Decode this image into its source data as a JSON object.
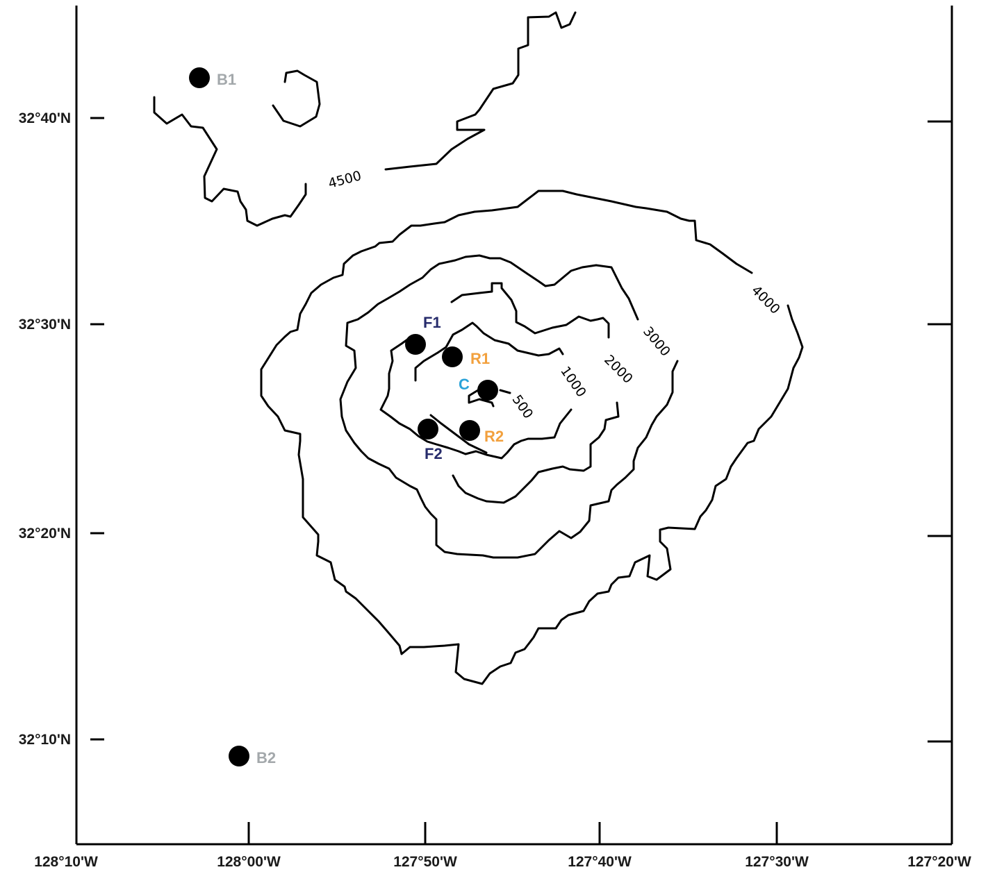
{
  "axes": {
    "x_ticks": [
      "128°10'W",
      "128°00'W",
      "127°50'W",
      "127°40'W",
      "127°30'W",
      "127°20'W"
    ],
    "y_ticks": [
      "32°40'N",
      "32°30'N",
      "32°20'N",
      "32°10'N"
    ]
  },
  "contour_labels": [
    "4500",
    "4000",
    "3000",
    "2000",
    "1000",
    "500"
  ],
  "sites": [
    {
      "id": "B1",
      "color": "#a3a8ab"
    },
    {
      "id": "B2",
      "color": "#a3a8ab"
    },
    {
      "id": "F1",
      "color": "#262b6b"
    },
    {
      "id": "F2",
      "color": "#262b6b"
    },
    {
      "id": "R1",
      "color": "#f2a03d"
    },
    {
      "id": "R2",
      "color": "#f2a03d"
    },
    {
      "id": "C",
      "color": "#2ba3d9"
    }
  ]
}
